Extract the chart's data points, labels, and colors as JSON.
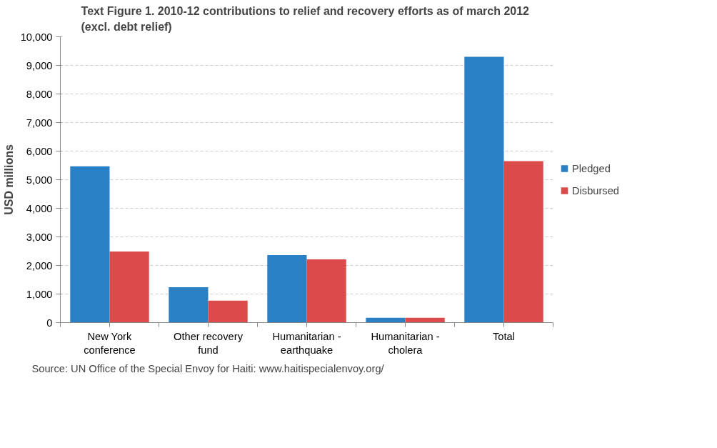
{
  "chart_data": {
    "type": "bar",
    "title": "Text Figure 1. 2010-12  contributions to relief and recovery efforts as of march 2012 (excl. debt relief)",
    "ylabel": "USD millions",
    "categories": [
      "New York conference",
      "Other recovery fund",
      "Humanitarian - earthquake",
      "Humanitarian - cholera",
      "Total"
    ],
    "series": [
      {
        "name": "Pledged",
        "color": "#2a80c5",
        "values": [
          5470,
          1240,
          2360,
          170,
          9300
        ]
      },
      {
        "name": "Disbursed",
        "color": "#dc4b4b",
        "values": [
          2490,
          770,
          2210,
          170,
          5650
        ]
      }
    ],
    "ylim": [
      0,
      10000
    ],
    "yticks": [
      {
        "value": 0,
        "label": "0"
      },
      {
        "value": 1000,
        "label": "1,000"
      },
      {
        "value": 2000,
        "label": "2,000"
      },
      {
        "value": 3000,
        "label": "3,000"
      },
      {
        "value": 4000,
        "label": "4,000"
      },
      {
        "value": 5000,
        "label": "5,000"
      },
      {
        "value": 6000,
        "label": "6,000"
      },
      {
        "value": 7000,
        "label": "7,000"
      },
      {
        "value": 8000,
        "label": "8,000"
      },
      {
        "value": 9000,
        "label": "9,000"
      },
      {
        "value": 10000,
        "label": "10,000"
      }
    ],
    "grid": "y",
    "legend": "right",
    "annotations": [
      "Source: UN Office of the Special Envoy for Haiti: www.haitispecialenvoy.org/"
    ]
  }
}
